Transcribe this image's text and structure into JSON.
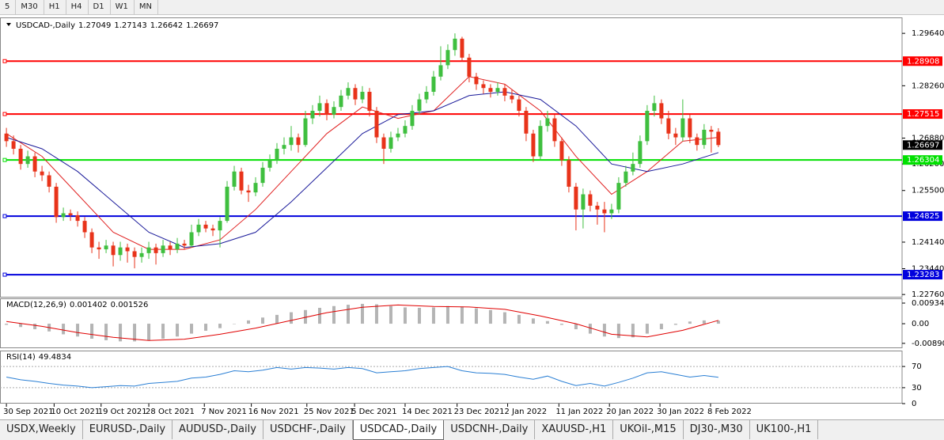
{
  "toolbar": [
    "5",
    "M30",
    "H1",
    "H4",
    "D1",
    "W1",
    "MN"
  ],
  "tabs": [
    "USDX,Weekly",
    "EURUSD-,Daily",
    "AUDUSD-,Daily",
    "USDCHF-,Daily",
    "USDCAD-,Daily",
    "USDCNH-,Daily",
    "XAUUSD-,H1",
    "UKOil-,M15",
    "DJ30-,M30",
    "UK100-,H1"
  ],
  "active_tab": 4,
  "chart_data": [
    {
      "type": "candlestick",
      "title": "USDCAD-,Daily",
      "up_color": "#3fbf3f",
      "down_color": "#e8331a",
      "xlim": [
        -0.9,
        125.8
      ],
      "ylim": [
        1.2268,
        1.3006
      ],
      "yticks": [
        {
          "value": 1.2964,
          "label": "1.29640"
        },
        {
          "value": 1.2826,
          "label": "1.28260"
        },
        {
          "value": 1.2688,
          "label": "1.26880"
        },
        {
          "value": 1.262,
          "label": "1.26200"
        },
        {
          "value": 1.255,
          "label": "1.25500"
        },
        {
          "value": 1.2414,
          "label": "1.24140"
        },
        {
          "value": 1.2344,
          "label": "1.23440"
        },
        {
          "value": 1.2276,
          "label": "1.22760"
        }
      ],
      "levels": [
        {
          "value": 1.28908,
          "color": "#ff0000"
        },
        {
          "value": 1.27515,
          "color": "#ff0000"
        },
        {
          "value": 1.26304,
          "color": "#00e000"
        },
        {
          "value": 1.24825,
          "color": "#0000dd"
        },
        {
          "value": 1.23283,
          "color": "#0000dd"
        }
      ],
      "last_price_color": "#000000",
      "series": [
        {
          "color": "#e02020",
          "x": [
            0,
            5,
            10,
            15,
            20,
            25,
            30,
            35,
            40,
            45,
            50,
            55,
            60,
            65,
            70,
            75,
            80,
            85,
            90,
            95,
            100
          ],
          "values": [
            1.27,
            1.264,
            1.254,
            1.244,
            1.2395,
            1.2395,
            1.242,
            1.25,
            1.26,
            1.27,
            1.277,
            1.274,
            1.276,
            1.285,
            1.283,
            1.276,
            1.264,
            1.254,
            1.26,
            1.268,
            1.269
          ]
        },
        {
          "color": "#1a1a9a",
          "x": [
            0,
            5,
            10,
            15,
            20,
            25,
            30,
            35,
            40,
            45,
            50,
            55,
            60,
            65,
            70,
            75,
            80,
            85,
            90,
            95,
            100
          ],
          "values": [
            1.269,
            1.266,
            1.26,
            1.252,
            1.244,
            1.24,
            1.241,
            1.244,
            1.252,
            1.261,
            1.27,
            1.275,
            1.276,
            1.28,
            1.281,
            1.279,
            1.272,
            1.262,
            1.26,
            1.262,
            1.265
          ]
        }
      ],
      "ohlc": [
        [
          1.27,
          1.2715,
          1.2665,
          1.268
        ],
        [
          1.268,
          1.2695,
          1.2645,
          1.266
        ],
        [
          1.266,
          1.267,
          1.2605,
          1.262
        ],
        [
          1.262,
          1.2655,
          1.261,
          1.264
        ],
        [
          1.264,
          1.265,
          1.2585,
          1.26
        ],
        [
          1.26,
          1.2615,
          1.2575,
          1.259
        ],
        [
          1.259,
          1.26,
          1.2545,
          1.256
        ],
        [
          1.256,
          1.257,
          1.2465,
          1.248
        ],
        [
          1.248,
          1.2505,
          1.247,
          1.249
        ],
        [
          1.249,
          1.25,
          1.247,
          1.2485
        ],
        [
          1.2485,
          1.2495,
          1.2455,
          1.247
        ],
        [
          1.247,
          1.248,
          1.2425,
          1.244
        ],
        [
          1.244,
          1.245,
          1.2385,
          1.24
        ],
        [
          1.24,
          1.2415,
          1.237,
          1.2395
        ],
        [
          1.2395,
          1.242,
          1.2385,
          1.2405
        ],
        [
          1.2405,
          1.2415,
          1.235,
          1.238
        ],
        [
          1.238,
          1.2415,
          1.2365,
          1.24
        ],
        [
          1.24,
          1.241,
          1.236,
          1.239
        ],
        [
          1.239,
          1.24,
          1.2345,
          1.2375
        ],
        [
          1.2375,
          1.24,
          1.236,
          1.2385
        ],
        [
          1.2385,
          1.2415,
          1.237,
          1.24
        ],
        [
          1.24,
          1.241,
          1.2355,
          1.2385
        ],
        [
          1.2385,
          1.242,
          1.2375,
          1.2405
        ],
        [
          1.2405,
          1.2415,
          1.238,
          1.2395
        ],
        [
          1.2395,
          1.2425,
          1.2385,
          1.241
        ],
        [
          1.241,
          1.242,
          1.2395,
          1.2405
        ],
        [
          1.2405,
          1.246,
          1.24,
          1.244
        ],
        [
          1.244,
          1.2475,
          1.243,
          1.246
        ],
        [
          1.246,
          1.247,
          1.244,
          1.245
        ],
        [
          1.245,
          1.246,
          1.243,
          1.2445
        ],
        [
          1.2445,
          1.248,
          1.24,
          1.247
        ],
        [
          1.247,
          1.2575,
          1.2465,
          1.256
        ],
        [
          1.256,
          1.2615,
          1.255,
          1.26
        ],
        [
          1.26,
          1.261,
          1.254,
          1.255
        ],
        [
          1.255,
          1.2565,
          1.252,
          1.2545
        ],
        [
          1.2545,
          1.2585,
          1.2535,
          1.257
        ],
        [
          1.257,
          1.2625,
          1.256,
          1.261
        ],
        [
          1.261,
          1.2645,
          1.26,
          1.263
        ],
        [
          1.263,
          1.2675,
          1.262,
          1.266
        ],
        [
          1.266,
          1.269,
          1.2645,
          1.267
        ],
        [
          1.267,
          1.272,
          1.2655,
          1.269
        ],
        [
          1.269,
          1.27,
          1.265,
          1.267
        ],
        [
          1.267,
          1.276,
          1.2665,
          1.274
        ],
        [
          1.274,
          1.2775,
          1.2725,
          1.276
        ],
        [
          1.276,
          1.28,
          1.2745,
          1.278
        ],
        [
          1.278,
          1.279,
          1.2735,
          1.275
        ],
        [
          1.275,
          1.2785,
          1.274,
          1.277
        ],
        [
          1.277,
          1.2815,
          1.276,
          1.28
        ],
        [
          1.28,
          1.2835,
          1.279,
          1.282
        ],
        [
          1.282,
          1.283,
          1.2775,
          1.279
        ],
        [
          1.279,
          1.2825,
          1.278,
          1.281
        ],
        [
          1.281,
          1.282,
          1.2745,
          1.276
        ],
        [
          1.276,
          1.277,
          1.2675,
          1.269
        ],
        [
          1.269,
          1.27,
          1.262,
          1.266
        ],
        [
          1.266,
          1.2705,
          1.265,
          1.269
        ],
        [
          1.269,
          1.2715,
          1.268,
          1.27
        ],
        [
          1.27,
          1.2735,
          1.269,
          1.272
        ],
        [
          1.272,
          1.2775,
          1.271,
          1.276
        ],
        [
          1.276,
          1.2805,
          1.275,
          1.279
        ],
        [
          1.279,
          1.2825,
          1.278,
          1.281
        ],
        [
          1.281,
          1.2865,
          1.28,
          1.285
        ],
        [
          1.285,
          1.293,
          1.284,
          1.288
        ],
        [
          1.288,
          1.2935,
          1.287,
          1.292
        ],
        [
          1.292,
          1.2964,
          1.2905,
          1.295
        ],
        [
          1.295,
          1.2955,
          1.289,
          1.29
        ],
        [
          1.29,
          1.291,
          1.2835,
          1.285
        ],
        [
          1.285,
          1.286,
          1.2815,
          1.283
        ],
        [
          1.283,
          1.284,
          1.2805,
          1.282
        ],
        [
          1.282,
          1.283,
          1.2795,
          1.281
        ],
        [
          1.281,
          1.2835,
          1.28,
          1.282
        ],
        [
          1.282,
          1.283,
          1.2785,
          1.28
        ],
        [
          1.28,
          1.2815,
          1.278,
          1.279
        ],
        [
          1.279,
          1.28,
          1.2745,
          1.276
        ],
        [
          1.276,
          1.277,
          1.268,
          1.27
        ],
        [
          1.27,
          1.271,
          1.2625,
          1.264
        ],
        [
          1.264,
          1.2735,
          1.263,
          1.272
        ],
        [
          1.272,
          1.276,
          1.2705,
          1.274
        ],
        [
          1.274,
          1.275,
          1.2665,
          1.268
        ],
        [
          1.268,
          1.269,
          1.2615,
          1.263
        ],
        [
          1.263,
          1.264,
          1.2545,
          1.256
        ],
        [
          1.256,
          1.257,
          1.2445,
          1.25
        ],
        [
          1.25,
          1.2555,
          1.245,
          1.254
        ],
        [
          1.254,
          1.255,
          1.2495,
          1.251
        ],
        [
          1.251,
          1.252,
          1.246,
          1.25
        ],
        [
          1.25,
          1.252,
          1.244,
          1.249
        ],
        [
          1.249,
          1.2515,
          1.2475,
          1.25
        ],
        [
          1.25,
          1.2585,
          1.249,
          1.257
        ],
        [
          1.257,
          1.2615,
          1.256,
          1.26
        ],
        [
          1.26,
          1.265,
          1.259,
          1.262
        ],
        [
          1.262,
          1.2695,
          1.261,
          1.268
        ],
        [
          1.268,
          1.2775,
          1.267,
          1.276
        ],
        [
          1.276,
          1.28,
          1.2745,
          1.278
        ],
        [
          1.278,
          1.279,
          1.2725,
          1.274
        ],
        [
          1.274,
          1.276,
          1.2685,
          1.27
        ],
        [
          1.27,
          1.2715,
          1.267,
          1.269
        ],
        [
          1.269,
          1.279,
          1.268,
          1.274
        ],
        [
          1.274,
          1.275,
          1.2675,
          1.269
        ],
        [
          1.269,
          1.27,
          1.2655,
          1.267
        ],
        [
          1.267,
          1.2725,
          1.266,
          1.271
        ],
        [
          1.271,
          1.272,
          1.265,
          1.2705
        ],
        [
          1.27049,
          1.27143,
          1.26642,
          1.26697
        ]
      ]
    },
    {
      "type": "macd",
      "title": "MACD(12,26,9)",
      "xlim": [
        -0.9,
        125.8
      ],
      "ylim": [
        -0.0111,
        0.0115
      ],
      "yticks": [
        0.009345,
        {
          "value": 0,
          "label": "0.00"
        },
        -0.008902
      ],
      "histogram": {
        "color": "#b4b4b4",
        "x": [
          0,
          2,
          4,
          6,
          8,
          10,
          12,
          14,
          16,
          18,
          20,
          22,
          24,
          26,
          28,
          30,
          32,
          34,
          36,
          38,
          40,
          42,
          44,
          46,
          48,
          50,
          52,
          54,
          56,
          58,
          60,
          62,
          64,
          66,
          68,
          70,
          72,
          74,
          76,
          78,
          80,
          82,
          84,
          86,
          88,
          90,
          92,
          94,
          96,
          98,
          100
        ],
        "values": [
          -0.0005,
          -0.0015,
          -0.0025,
          -0.0035,
          -0.0048,
          -0.0058,
          -0.0068,
          -0.0075,
          -0.008,
          -0.008,
          -0.0076,
          -0.0068,
          -0.0058,
          -0.0045,
          -0.0032,
          -0.002,
          0,
          0.0015,
          0.0028,
          0.004,
          0.0052,
          0.0062,
          0.0072,
          0.008,
          0.0086,
          0.009,
          0.0088,
          0.008,
          0.0074,
          0.0072,
          0.0074,
          0.008,
          0.0078,
          0.007,
          0.0062,
          0.0052,
          0.004,
          0.0024,
          0.0012,
          -0.0005,
          -0.0025,
          -0.0045,
          -0.0058,
          -0.0065,
          -0.0062,
          -0.0045,
          -0.0025,
          -0.0005,
          0.001,
          0.0015,
          0.001402
        ]
      },
      "signal": {
        "color": "#e00000",
        "x": [
          0,
          5,
          10,
          15,
          20,
          25,
          30,
          35,
          40,
          45,
          50,
          55,
          60,
          65,
          70,
          75,
          80,
          85,
          90,
          95,
          100
        ],
        "values": [
          0.001,
          -0.0012,
          -0.004,
          -0.0062,
          -0.0076,
          -0.007,
          -0.0048,
          -0.002,
          0.0015,
          0.005,
          0.0075,
          0.0085,
          0.0078,
          0.0076,
          0.0065,
          0.0035,
          0,
          -0.0048,
          -0.006,
          -0.003,
          0.001526
        ]
      }
    },
    {
      "type": "line",
      "title": "RSI(14)",
      "xlim": [
        -0.9,
        125.8
      ],
      "ylim": [
        0,
        100
      ],
      "yticks": [
        0,
        30,
        70
      ],
      "levels": [
        30,
        70
      ],
      "xticks": [
        {
          "value": 0,
          "label": "30 Sep 2021"
        },
        {
          "value": 6.7,
          "label": "10 Oct 2021"
        },
        {
          "value": 13.3,
          "label": "19 Oct 2021"
        },
        {
          "value": 20,
          "label": "28 Oct 2021"
        },
        {
          "value": 27.8,
          "label": "7 Nov 2021"
        },
        {
          "value": 34.4,
          "label": "16 Nov 2021"
        },
        {
          "value": 42.2,
          "label": "25 Nov 2021"
        },
        {
          "value": 48.9,
          "label": "5 Dec 2021"
        },
        {
          "value": 56,
          "label": "14 Dec 2021"
        },
        {
          "value": 63.3,
          "label": "23 Dec 2021"
        },
        {
          "value": 70.4,
          "label": "2 Jan 2022"
        },
        {
          "value": 77.6,
          "label": "11 Jan 2022"
        },
        {
          "value": 84.7,
          "label": "20 Jan 2022"
        },
        {
          "value": 91.8,
          "label": "30 Jan 2022"
        },
        {
          "value": 98.9,
          "label": "8 Feb 2022"
        }
      ],
      "series": [
        {
          "color": "#2a7fd4",
          "x": [
            0,
            2,
            4,
            6,
            8,
            10,
            12,
            14,
            16,
            18,
            20,
            22,
            24,
            26,
            28,
            30,
            32,
            34,
            36,
            38,
            40,
            42,
            44,
            46,
            48,
            50,
            52,
            54,
            56,
            58,
            60,
            62,
            64,
            66,
            68,
            70,
            72,
            74,
            76,
            78,
            80,
            82,
            84,
            86,
            88,
            90,
            92,
            94,
            96,
            98,
            100
          ],
          "values": [
            50,
            45,
            42,
            38,
            35,
            33,
            30,
            32,
            34,
            33,
            38,
            40,
            42,
            48,
            50,
            55,
            62,
            60,
            63,
            68,
            65,
            68,
            67,
            65,
            68,
            66,
            58,
            60,
            62,
            66,
            68,
            70,
            62,
            58,
            57,
            55,
            50,
            46,
            52,
            42,
            34,
            38,
            33,
            40,
            48,
            58,
            60,
            55,
            50,
            53,
            49.4834
          ]
        }
      ]
    }
  ]
}
